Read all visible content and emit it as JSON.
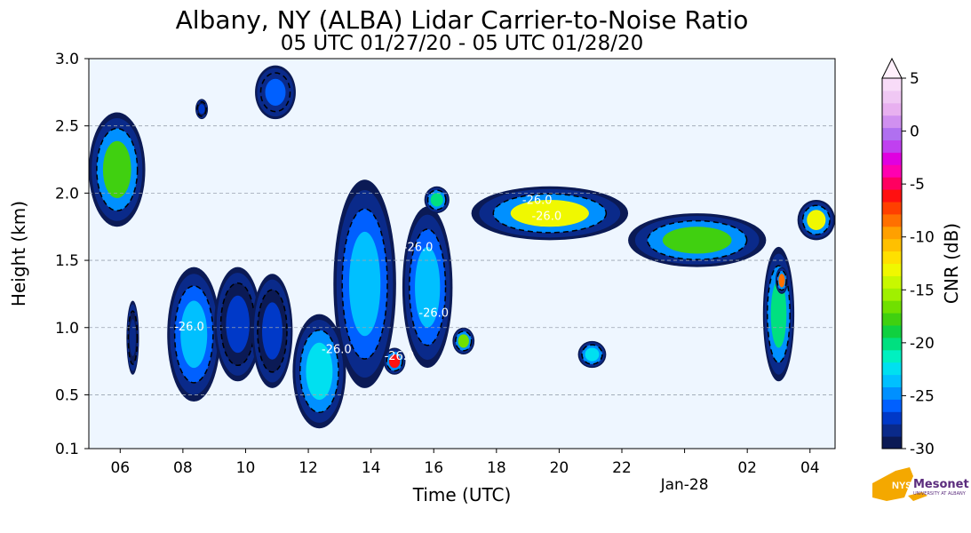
{
  "header": {
    "title": "Albany, NY (ALBA) Lidar Carrier-to-Noise Ratio",
    "subtitle": "05 UTC 01/27/20 - 05 UTC 01/28/20"
  },
  "logo": {
    "text": "Mesonet",
    "prefix": "NYS",
    "sub": "UNIVERSITY AT ALBANY"
  },
  "chart_data": {
    "type": "heatmap",
    "xlabel": "Time (UTC)",
    "ylabel": "Height (km)",
    "colorbar_label": "CNR (dB)",
    "x_range_hours": [
      5,
      28.8
    ],
    "y_range_km": [
      0.1,
      3.0
    ],
    "x_ticks": [
      {
        "h": 6,
        "label": "06"
      },
      {
        "h": 8,
        "label": "08"
      },
      {
        "h": 10,
        "label": "10"
      },
      {
        "h": 12,
        "label": "12"
      },
      {
        "h": 14,
        "label": "14"
      },
      {
        "h": 16,
        "label": "16"
      },
      {
        "h": 18,
        "label": "18"
      },
      {
        "h": 20,
        "label": "20"
      },
      {
        "h": 22,
        "label": "22"
      },
      {
        "h": 24,
        "label": "Jan-28"
      },
      {
        "h": 26,
        "label": "02"
      },
      {
        "h": 28,
        "label": "04"
      }
    ],
    "y_ticks": [
      {
        "v": 0.1,
        "label": "0.1"
      },
      {
        "v": 0.5,
        "label": "0.5"
      },
      {
        "v": 1.0,
        "label": "1.0"
      },
      {
        "v": 1.5,
        "label": "1.5"
      },
      {
        "v": 2.0,
        "label": "2.0"
      },
      {
        "v": 2.5,
        "label": "2.5"
      },
      {
        "v": 3.0,
        "label": "3.0"
      }
    ],
    "grid": "horizontal dashed",
    "colorbar": {
      "min": -30,
      "max": 5,
      "extend": "max",
      "ticks": [
        {
          "v": 5,
          "label": "5"
        },
        {
          "v": 0,
          "label": "0"
        },
        {
          "v": -5,
          "label": "-5"
        },
        {
          "v": -10,
          "label": "-10"
        },
        {
          "v": -15,
          "label": "-15"
        },
        {
          "v": -20,
          "label": "-20"
        },
        {
          "v": -25,
          "label": "-25"
        },
        {
          "v": -30,
          "label": "-30"
        }
      ],
      "colors": [
        "#0b1a55",
        "#0a2a8a",
        "#0039c8",
        "#0060ff",
        "#0090ff",
        "#00c0ff",
        "#00e0f0",
        "#00f0c0",
        "#00e080",
        "#10d040",
        "#40d010",
        "#70e000",
        "#a0f000",
        "#c8f800",
        "#f0f800",
        "#ffe000",
        "#ffc000",
        "#ffa000",
        "#ff7000",
        "#ff4000",
        "#ff1010",
        "#ff0060",
        "#ff00b0",
        "#e000e0",
        "#c040f0",
        "#b070f0",
        "#d090f0",
        "#e8b0f0",
        "#f0c8f4",
        "#f8dcf8"
      ],
      "extend_color": "#fff0fc"
    },
    "contour_label_values": [
      "-26.0"
    ],
    "regions": [
      {
        "name": "band-early",
        "x0": 5.0,
        "x1": 6.8,
        "y0": 1.75,
        "y1": 2.6,
        "cnr": -18
      },
      {
        "name": "low-cloud-07",
        "x0": 7.5,
        "x1": 9.2,
        "y0": 0.45,
        "y1": 1.45,
        "cnr": -24
      },
      {
        "name": "patch-06",
        "x0": 6.2,
        "x1": 6.6,
        "y0": 0.65,
        "y1": 1.2,
        "cnr": -28
      },
      {
        "name": "patch-09",
        "x0": 9.0,
        "x1": 10.5,
        "y0": 0.6,
        "y1": 1.45,
        "cnr": -27
      },
      {
        "name": "tower-11",
        "x0": 10.2,
        "x1": 11.5,
        "y0": 0.55,
        "y1": 1.4,
        "cnr": -27
      },
      {
        "name": "cloud-12-13",
        "x0": 11.5,
        "x1": 13.2,
        "y0": 0.25,
        "y1": 1.1,
        "cnr": -22
      },
      {
        "name": "tower-13-14",
        "x0": 12.8,
        "x1": 14.8,
        "y0": 0.55,
        "y1": 2.1,
        "cnr": -24
      },
      {
        "name": "core-14",
        "x0": 14.4,
        "x1": 15.1,
        "y0": 0.65,
        "y1": 0.85,
        "cnr": -6
      },
      {
        "name": "tower-15-16",
        "x0": 15.0,
        "x1": 16.6,
        "y0": 0.7,
        "y1": 1.9,
        "cnr": -24
      },
      {
        "name": "patch-17",
        "x0": 16.6,
        "x1": 17.3,
        "y0": 0.8,
        "y1": 1.0,
        "cnr": -17
      },
      {
        "name": "high-band-18-22",
        "x0": 17.2,
        "x1": 22.2,
        "y0": 1.65,
        "y1": 2.05,
        "cnr": -13
      },
      {
        "name": "high-band-22-26",
        "x0": 22.2,
        "x1": 26.6,
        "y0": 1.45,
        "y1": 1.85,
        "cnr": -18
      },
      {
        "name": "patch-21",
        "x0": 20.6,
        "x1": 21.5,
        "y0": 0.7,
        "y1": 0.9,
        "cnr": -22
      },
      {
        "name": "descent-26-27",
        "x0": 26.5,
        "x1": 27.5,
        "y0": 0.6,
        "y1": 1.6,
        "cnr": -20
      },
      {
        "name": "core-27",
        "x0": 26.9,
        "x1": 27.3,
        "y0": 1.25,
        "y1": 1.45,
        "cnr": -8
      },
      {
        "name": "band-late",
        "x0": 27.6,
        "x1": 28.8,
        "y0": 1.65,
        "y1": 1.95,
        "cnr": -13
      },
      {
        "name": "small-10-high",
        "x0": 10.3,
        "x1": 11.6,
        "y0": 2.55,
        "y1": 2.95,
        "cnr": -26
      },
      {
        "name": "small-09-high",
        "x0": 8.4,
        "x1": 8.8,
        "y0": 2.55,
        "y1": 2.7,
        "cnr": -27
      },
      {
        "name": "small-16-2k",
        "x0": 15.7,
        "x1": 16.5,
        "y0": 1.85,
        "y1": 2.05,
        "cnr": -20
      }
    ]
  }
}
